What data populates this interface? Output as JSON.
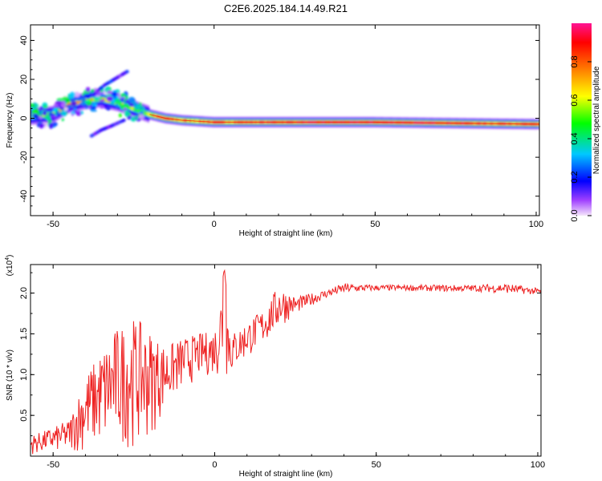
{
  "title": "C2E6.2025.184.14.49.R21",
  "chart_data": [
    {
      "type": "heatmap",
      "xlabel": "Height of straight line (km)",
      "ylabel": "Frequency (Hz)",
      "xlim": [
        -57,
        101
      ],
      "ylim": [
        -50,
        48
      ],
      "xticks": [
        -50,
        0,
        50,
        100
      ],
      "yticks": [
        -40,
        -20,
        0,
        20,
        40
      ],
      "colorbar": {
        "label": "Normalized spectral amplitude",
        "range": [
          0,
          1
        ],
        "ticks": [
          "0.0",
          "0.2",
          "0.4",
          "0.6",
          "0.8"
        ],
        "colors": [
          "#f5e6fb",
          "#7a00ff",
          "#0000ff",
          "#00d0ff",
          "#00ff00",
          "#ffff00",
          "#ff6a00",
          "#ff0000",
          "#ff1493"
        ]
      },
      "ridge_frequency_hz": [
        {
          "x": -57,
          "y": 1
        },
        {
          "x": -50,
          "y": 2
        },
        {
          "x": -45,
          "y": 7
        },
        {
          "x": -40,
          "y": 9
        },
        {
          "x": -35,
          "y": 10
        },
        {
          "x": -30,
          "y": 8
        },
        {
          "x": -25,
          "y": 5
        },
        {
          "x": -20,
          "y": 2
        },
        {
          "x": -15,
          "y": 0
        },
        {
          "x": -10,
          "y": -1
        },
        {
          "x": 0,
          "y": -2
        },
        {
          "x": 10,
          "y": -2
        },
        {
          "x": 50,
          "y": -2
        },
        {
          "x": 100,
          "y": -3
        }
      ],
      "ridge_amplitude": [
        {
          "x": -57,
          "y": 0.45
        },
        {
          "x": -50,
          "y": 0.55
        },
        {
          "x": -45,
          "y": 0.7
        },
        {
          "x": -40,
          "y": 0.65
        },
        {
          "x": -35,
          "y": 0.6
        },
        {
          "x": -30,
          "y": 0.55
        },
        {
          "x": -25,
          "y": 0.5
        },
        {
          "x": -20,
          "y": 0.6
        },
        {
          "x": -15,
          "y": 0.8
        },
        {
          "x": -10,
          "y": 0.7
        },
        {
          "x": -5,
          "y": 0.75
        },
        {
          "x": 0,
          "y": 0.8
        },
        {
          "x": 5,
          "y": 0.8
        },
        {
          "x": 10,
          "y": 0.82
        },
        {
          "x": 20,
          "y": 0.85
        },
        {
          "x": 30,
          "y": 0.9
        },
        {
          "x": 50,
          "y": 0.92
        },
        {
          "x": 70,
          "y": 0.92
        },
        {
          "x": 85,
          "y": 0.8
        },
        {
          "x": 95,
          "y": 0.85
        },
        {
          "x": 100,
          "y": 0.75
        }
      ],
      "secondary_branches": [
        {
          "name": "upper branch",
          "points": [
            {
              "x": -37,
              "y": 13
            },
            {
              "x": -34,
              "y": 17
            },
            {
              "x": -30,
              "y": 21
            },
            {
              "x": -27,
              "y": 24
            }
          ]
        },
        {
          "name": "lower branch",
          "points": [
            {
              "x": -38,
              "y": -9
            },
            {
              "x": -35,
              "y": -6
            },
            {
              "x": -32,
              "y": -4
            },
            {
              "x": -28,
              "y": -1
            }
          ]
        }
      ]
    },
    {
      "type": "line",
      "xlabel": "Height of straight line (km)",
      "ylabel": "SNR (10 * v/v)",
      "y_multiplier": "(x10⁴)",
      "y_multiplier_base": "(x10",
      "y_multiplier_exp": "4",
      "y_multiplier_close": ")",
      "xlim": [
        -57,
        101
      ],
      "ylim": [
        0,
        2.35
      ],
      "xticks": [
        -50,
        0,
        50,
        100
      ],
      "yticks": [
        0.5,
        1.0,
        1.5,
        2.0
      ],
      "ytick_labels": [
        "0.5",
        "1.0",
        "1.5",
        "2.0"
      ],
      "color": "#ee2222",
      "envelope": [
        {
          "x": -57,
          "low": 0.02,
          "high": 0.25
        },
        {
          "x": -50,
          "low": 0.05,
          "high": 0.35
        },
        {
          "x": -45,
          "low": 0.05,
          "high": 0.45
        },
        {
          "x": -40,
          "low": 0.05,
          "high": 1.0
        },
        {
          "x": -35,
          "low": 0.1,
          "high": 1.3
        },
        {
          "x": -30,
          "low": 0.1,
          "high": 1.6
        },
        {
          "x": -25,
          "low": 0.1,
          "high": 1.7
        },
        {
          "x": -20,
          "low": 0.2,
          "high": 1.55
        },
        {
          "x": -15,
          "low": 0.6,
          "high": 1.35
        },
        {
          "x": -10,
          "low": 0.8,
          "high": 1.45
        },
        {
          "x": -5,
          "low": 0.95,
          "high": 1.5
        },
        {
          "x": 0,
          "low": 1.0,
          "high": 1.55
        },
        {
          "x": 3,
          "low": 0.9,
          "high": 2.3
        },
        {
          "x": 5,
          "low": 1.0,
          "high": 1.5
        },
        {
          "x": 10,
          "low": 1.2,
          "high": 1.65
        },
        {
          "x": 15,
          "low": 1.35,
          "high": 1.8
        },
        {
          "x": 20,
          "low": 1.55,
          "high": 2.1
        },
        {
          "x": 25,
          "low": 1.75,
          "high": 1.95
        },
        {
          "x": 30,
          "low": 1.85,
          "high": 2.0
        },
        {
          "x": 35,
          "low": 1.95,
          "high": 2.05
        },
        {
          "x": 40,
          "low": 2.0,
          "high": 2.12
        },
        {
          "x": 50,
          "low": 2.03,
          "high": 2.1
        },
        {
          "x": 60,
          "low": 2.03,
          "high": 2.1
        },
        {
          "x": 70,
          "low": 2.02,
          "high": 2.1
        },
        {
          "x": 80,
          "low": 2.02,
          "high": 2.1
        },
        {
          "x": 90,
          "low": 2.0,
          "high": 2.12
        },
        {
          "x": 100,
          "low": 1.98,
          "high": 2.06
        }
      ]
    }
  ]
}
